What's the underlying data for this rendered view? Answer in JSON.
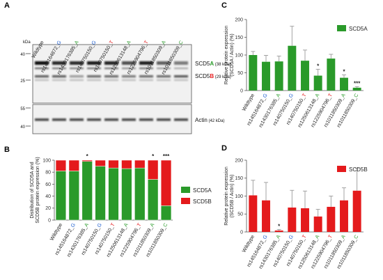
{
  "colors": {
    "scd5a": "#2a9a2a",
    "scd5b": "#e41a1c",
    "blue": "#1f5fd0",
    "black": "#222222",
    "err": "#999999"
  },
  "categories": [
    {
      "prefix": "Wildtype",
      "allele": "",
      "allele_color": "black"
    },
    {
      "prefix": "rs145164872_",
      "allele": "G",
      "allele_color": "blue"
    },
    {
      "prefix": "rs1430176385_",
      "allele": "A",
      "allele_color": "scd5a"
    },
    {
      "prefix": "rs140750150_",
      "allele": "G",
      "allele_color": "blue"
    },
    {
      "prefix": "rs140750150_",
      "allele": "T",
      "allele_color": "scd5b"
    },
    {
      "prefix": "rs1250613148_",
      "allele": "A",
      "allele_color": "scd5a"
    },
    {
      "prefix": "rs1225904796_",
      "allele": "T",
      "allele_color": "scd5b"
    },
    {
      "prefix": "rs1011850309_",
      "allele": "A",
      "allele_color": "scd5a"
    },
    {
      "prefix": "rs1011850309_",
      "allele": "C",
      "allele_color": "scd5a"
    }
  ],
  "panel_a": {
    "letter": "A",
    "kda_label": "kDa",
    "top_markers": [
      "40",
      "25"
    ],
    "bottom_markers": [
      "55",
      "40"
    ],
    "scd5a_label": {
      "p1": "SCD5",
      "p2": "A",
      "p3": " (38 kDa)"
    },
    "scd5b_label": {
      "p1": "SCD5",
      "p2": "B",
      "p3": " (29 kDa)"
    },
    "actin_label": {
      "p1": "Actin",
      "p2": " (42 kDa)"
    }
  },
  "chart_data": [
    {
      "panel": "B",
      "type": "bar",
      "stacked": true,
      "ylabel": "Distribution of SCD5A and SCD5B protein expression (%)",
      "ylabel_lines": [
        "Distribution of SCD5A and",
        "SCD5B protein expression (%)"
      ],
      "ylim": [
        0,
        100
      ],
      "yticks": [
        0,
        20,
        40,
        60,
        80,
        100
      ],
      "series": [
        {
          "name": "SCD5A",
          "color": "#2a9a2a",
          "values": [
            82,
            82,
            98,
            90,
            87,
            86,
            87,
            68,
            24
          ]
        },
        {
          "name": "SCD5B",
          "color": "#e41a1c",
          "values": [
            18,
            18,
            2,
            10,
            13,
            14,
            13,
            32,
            76
          ]
        }
      ],
      "annotations": [
        "",
        "",
        "*",
        "",
        "",
        "",
        "",
        "*",
        "***"
      ],
      "legend_position": "right"
    },
    {
      "panel": "C",
      "type": "bar",
      "ylabel": "Relative protein expression (SCD5A / Actin) (%)",
      "ylabel_lines": [
        "Relative protein expression",
        "(SCD5A / Actin) (%)"
      ],
      "ylim": [
        0,
        200
      ],
      "yticks": [
        0,
        50,
        100,
        150,
        200
      ],
      "series": [
        {
          "name": "SCD5A",
          "color": "#2a9a2a",
          "values": [
            100,
            81,
            82,
            126,
            84,
            42,
            90,
            36,
            8
          ],
          "errors": [
            10,
            18,
            15,
            55,
            30,
            18,
            12,
            8,
            3
          ]
        }
      ],
      "annotations": [
        "",
        "",
        "",
        "",
        "",
        "*",
        "",
        "*",
        "***"
      ],
      "legend_position": "top-right"
    },
    {
      "panel": "D",
      "type": "bar",
      "ylabel": "Relative protein expression (SCD5B / Actin) (%)",
      "ylabel_lines": [
        "Relative protein expression",
        "(SCD5B / Actin) (%)"
      ],
      "ylim": [
        0,
        200
      ],
      "yticks": [
        0,
        50,
        100,
        150,
        200
      ],
      "series": [
        {
          "name": "SCD5B",
          "color": "#e41a1c",
          "values": [
            102,
            88,
            4,
            68,
            66,
            43,
            70,
            88,
            115
          ],
          "errors": [
            42,
            50,
            3,
            48,
            48,
            20,
            30,
            35,
            62
          ]
        }
      ],
      "annotations": [
        "",
        "",
        "*",
        "",
        "",
        "",
        "",
        "",
        ""
      ],
      "legend_position": "top-right"
    }
  ]
}
